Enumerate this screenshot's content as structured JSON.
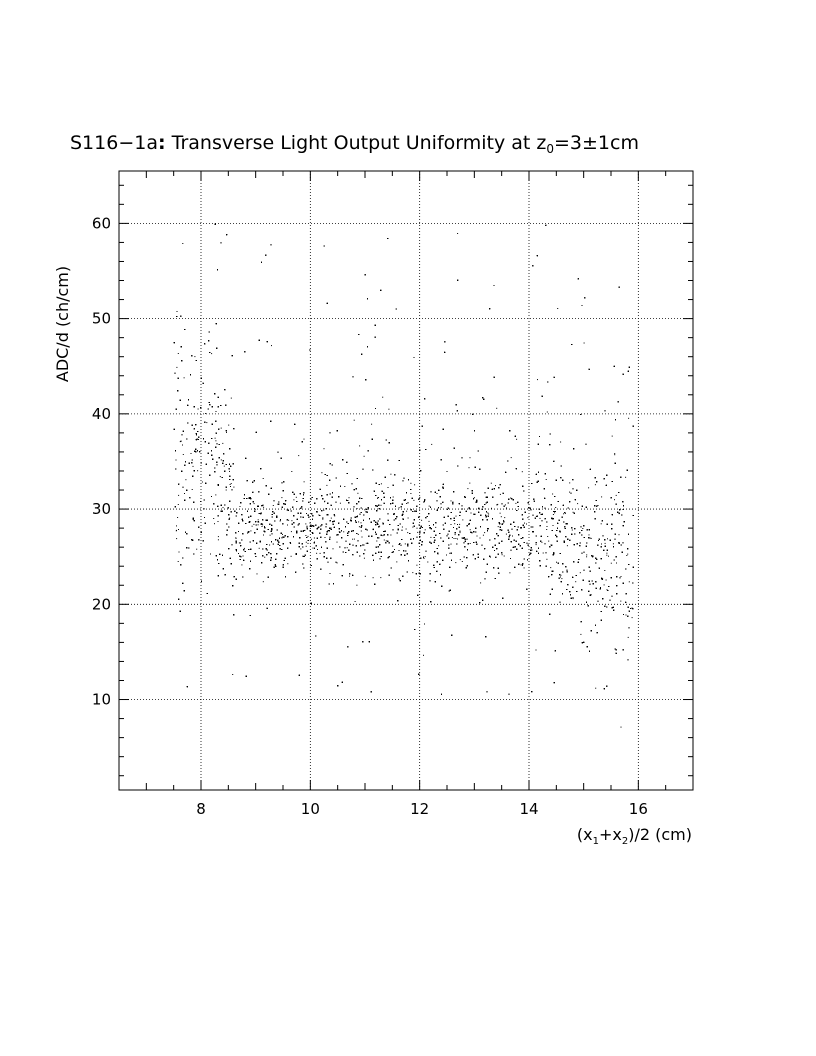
{
  "chart_data": {
    "type": "scatter",
    "title": "S116−1a : Transverse Light Output Uniformity at z₀=3±1cm",
    "title_parts": {
      "main": "S116−1a",
      "colon": ":",
      "rest": " Transverse Light Output Uniformity at z",
      "sub": "0",
      "tail": "=3±1cm"
    },
    "xlabel": "(x₁+x₂)/2 (cm)",
    "xlabel_parts": {
      "open": "(x",
      "sub1": "1",
      "plus": "+x",
      "sub2": "2",
      "close": ")/2 (cm)"
    },
    "ylabel": "ADC/d (ch/cm)",
    "xlim": [
      6.5,
      17
    ],
    "ylim": [
      0.5,
      65.5
    ],
    "x_ticks": [
      8,
      10,
      12,
      14,
      16
    ],
    "y_ticks": [
      10,
      20,
      30,
      40,
      50,
      60
    ],
    "grid": true,
    "point_color": "#000000",
    "description_of_distribution": {
      "x_range": [
        7.5,
        15.9
      ],
      "band_center_y": 28,
      "band_spread_y": 3.5,
      "low_x_region_spread_up_to": 60,
      "high_x_region_dip_down_to": 12,
      "approx_points": 14000
    },
    "series": [
      {
        "name": "",
        "points": "generated"
      }
    ]
  }
}
